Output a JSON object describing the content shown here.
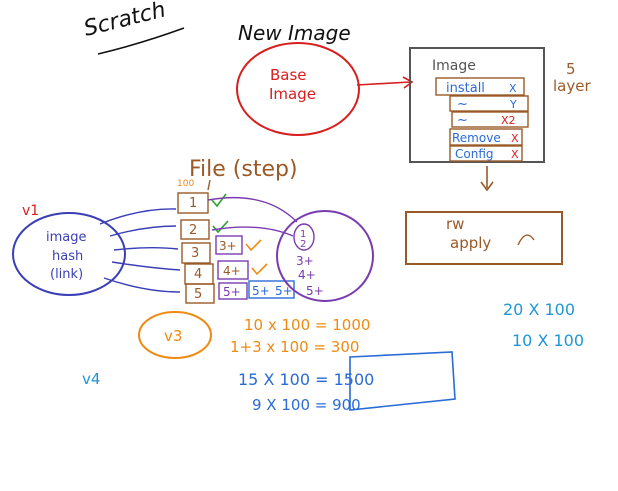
{
  "title": "Scratch",
  "new_image": "New Image",
  "base_image": [
    "Base",
    "Image"
  ],
  "image_box": {
    "title": "Image",
    "layers": [
      "install",
      "~",
      "~",
      "Remove",
      "Config"
    ],
    "marks": [
      "X",
      "Y",
      "X2",
      "X",
      "X"
    ]
  },
  "layer_note": [
    "5",
    "layer"
  ],
  "rw_box": [
    "rw",
    "apply"
  ],
  "file_step": "File (step)",
  "v1": "v1",
  "image_hash": [
    "image",
    "hash",
    "(link)"
  ],
  "step_100": "100",
  "steps": [
    "1",
    "2",
    "3",
    "4",
    "5"
  ],
  "step_addons": [
    "3+",
    "4+",
    "5+",
    "5+",
    "5+"
  ],
  "circle_group": [
    "1",
    "2",
    "3+",
    "4+",
    "5+"
  ],
  "v3": "v3",
  "v4": "v4",
  "orange_calc": [
    "10 x 100 = 1000",
    "1+3 x 100 = 300"
  ],
  "blue_calc": [
    "15 X 100 = 1500",
    "9 X 100 = 900"
  ],
  "cyan_calc": [
    "20 X 100",
    "10 X 100"
  ],
  "colors": {
    "ink": "#111111",
    "red": "#d81e1e",
    "gray": "#555555",
    "blue": "#2a6bd6",
    "brown": "#9a5a28",
    "purple": "#7a3bb0",
    "orange": "#ef8a12",
    "green": "#2ea02e",
    "cyan": "#1f96d6",
    "navy": "#3a3fb5"
  }
}
